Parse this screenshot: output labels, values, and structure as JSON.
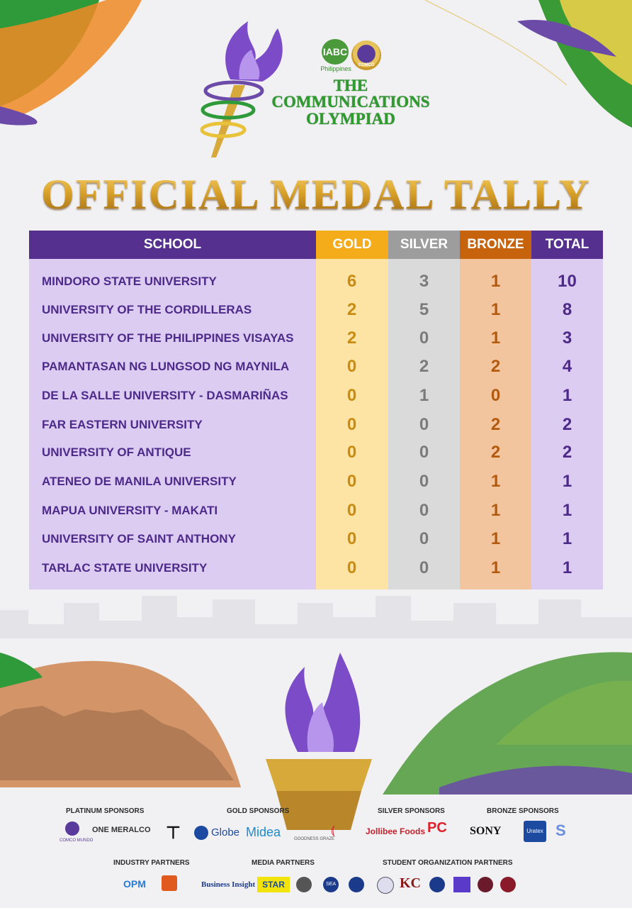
{
  "header": {
    "org_logo_text": "IABC",
    "org_logo_sub": "Philippines",
    "seal_text": "COMCO",
    "event_line1": "THE",
    "event_line2": "COMMUNICATIONS",
    "event_line3": "OLYMPIAD"
  },
  "main_title": "OFFICIAL MEDAL TALLY",
  "table": {
    "headers": {
      "school": "SCHOOL",
      "gold": "GOLD",
      "silver": "SILVER",
      "bronze": "BRONZE",
      "total": "TOTAL"
    },
    "rows": [
      {
        "school": "MINDORO STATE UNIVERSITY",
        "gold": "6",
        "silver": "3",
        "bronze": "1",
        "total": "10"
      },
      {
        "school": "UNIVERSITY OF THE CORDILLERAS",
        "gold": "2",
        "silver": "5",
        "bronze": "1",
        "total": "8"
      },
      {
        "school": "UNIVERSITY OF THE PHILIPPINES VISAYAS",
        "gold": "2",
        "silver": "0",
        "bronze": "1",
        "total": "3"
      },
      {
        "school": "PAMANTASAN NG LUNGSOD NG MAYNILA",
        "gold": "0",
        "silver": "2",
        "bronze": "2",
        "total": "4"
      },
      {
        "school": "DE LA SALLE UNIVERSITY - DASMARIÑAS",
        "gold": "0",
        "silver": "1",
        "bronze": "0",
        "total": "1"
      },
      {
        "school": "FAR EASTERN UNIVERSITY",
        "gold": "0",
        "silver": "0",
        "bronze": "2",
        "total": "2"
      },
      {
        "school": "UNIVERSITY OF ANTIQUE",
        "gold": "0",
        "silver": "0",
        "bronze": "2",
        "total": "2"
      },
      {
        "school": "ATENEO DE MANILA UNIVERSITY",
        "gold": "0",
        "silver": "0",
        "bronze": "1",
        "total": "1"
      },
      {
        "school": "MAPUA UNIVERSITY - MAKATI",
        "gold": "0",
        "silver": "0",
        "bronze": "1",
        "total": "1"
      },
      {
        "school": "UNIVERSITY OF SAINT ANTHONY",
        "gold": "0",
        "silver": "0",
        "bronze": "1",
        "total": "1"
      },
      {
        "school": "TARLAC STATE UNIVERSITY",
        "gold": "0",
        "silver": "0",
        "bronze": "1",
        "total": "1"
      }
    ]
  },
  "sponsors": {
    "platinum_label": "PLATINUM SPONSORS",
    "gold_label": "GOLD SPONSORS",
    "silver_label": "SILVER SPONSORS",
    "bronze_label": "BRONZE SPONSORS",
    "industry_label": "INDUSTRY PARTNERS",
    "media_label": "MEDIA PARTNERS",
    "student_label": "STUDENT ORGANIZATION PARTNERS",
    "platinum": {
      "comco": "COMCO MUNDO",
      "meralco": "ONE MERALCO"
    },
    "gold": {
      "globe": "Globe",
      "midea": "Midea",
      "goodness": "GOODNESS GRAZE"
    },
    "silver": {
      "jollibee": "Jollibee Foods",
      "pc": "PC"
    },
    "bronze": {
      "sony": "SONY",
      "uratex": "Uratex"
    },
    "industry": {
      "opm": "OPM"
    },
    "media": {
      "business_insight": "Business Insight",
      "star": "STAR",
      "sea": "SEA"
    },
    "student": {
      "kc": "KC"
    }
  },
  "colors": {
    "purple": "#55308f",
    "gold": "#f4ac1a",
    "silver": "#9d9d9d",
    "bronze": "#c8630d",
    "title_gold": "#c48a17",
    "event_green": "#2f9a2d"
  }
}
